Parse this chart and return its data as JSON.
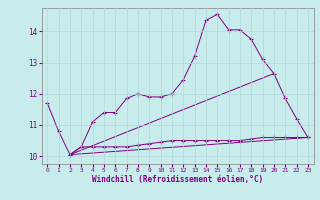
{
  "xlabel": "Windchill (Refroidissement éolien,°C)",
  "bg_color": "#c8ecec",
  "grid_color": "#b0d8d8",
  "line_color": "#800080",
  "x_min": -0.5,
  "x_max": 23.5,
  "y_min": 9.75,
  "y_max": 14.75,
  "yticks": [
    10,
    11,
    12,
    13,
    14
  ],
  "xticks": [
    0,
    1,
    2,
    3,
    4,
    5,
    6,
    7,
    8,
    9,
    10,
    11,
    12,
    13,
    14,
    15,
    16,
    17,
    18,
    19,
    20,
    21,
    22,
    23
  ],
  "series1_x": [
    0,
    1,
    2,
    3,
    4,
    5,
    6,
    7,
    8,
    9,
    10,
    11,
    12,
    13,
    14,
    15,
    16,
    17,
    18,
    19,
    20,
    21,
    22,
    23
  ],
  "series1_y": [
    11.7,
    10.8,
    10.05,
    10.3,
    11.1,
    11.4,
    11.4,
    11.85,
    12.0,
    11.9,
    11.9,
    12.0,
    12.45,
    13.2,
    14.35,
    14.55,
    14.05,
    14.05,
    13.75,
    13.1,
    12.65,
    11.85,
    11.2,
    10.6
  ],
  "series2_x": [
    2,
    3,
    4,
    5,
    6,
    7,
    8,
    9,
    10,
    11,
    12,
    13,
    14,
    15,
    16,
    17,
    18,
    19,
    20,
    21,
    22,
    23
  ],
  "series2_y": [
    10.05,
    10.3,
    10.3,
    10.3,
    10.3,
    10.3,
    10.35,
    10.4,
    10.45,
    10.5,
    10.5,
    10.5,
    10.5,
    10.5,
    10.5,
    10.5,
    10.55,
    10.6,
    10.6,
    10.6,
    10.6,
    10.6
  ],
  "series3_x": [
    2,
    20
  ],
  "series3_y": [
    10.05,
    12.65
  ],
  "series4_x": [
    2,
    23
  ],
  "series4_y": [
    10.05,
    10.6
  ]
}
